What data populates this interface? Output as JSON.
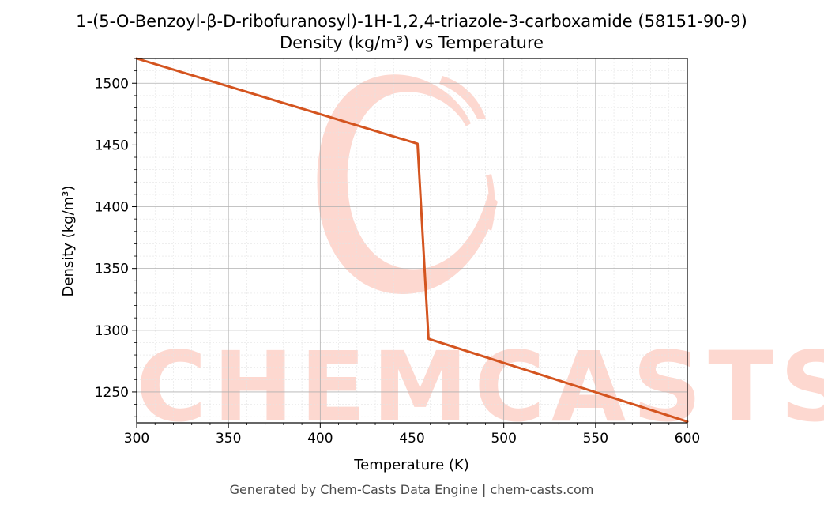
{
  "chart_data": {
    "type": "line",
    "title": "1-(5-O-Benzoyl-β-D-ribofuranosyl)-1H-1,2,4-triazole-3-carboxamide (58151-90-9)",
    "subtitle": "Density (kg/m³) vs Temperature",
    "xlabel": "Temperature (K)",
    "ylabel": "Density (kg/m³)",
    "xlim": [
      300,
      600
    ],
    "ylim": [
      1225,
      1520
    ],
    "xticks": [
      300,
      350,
      400,
      450,
      500,
      550,
      600
    ],
    "yticks": [
      1250,
      1300,
      1350,
      1400,
      1450,
      1500
    ],
    "grid": true,
    "series": [
      {
        "color": "#d4541f",
        "x": [
          300,
          453,
          459,
          600
        ],
        "y": [
          1520,
          1451,
          1293,
          1226
        ]
      }
    ]
  },
  "watermark": {
    "text": "CHEMCASTS",
    "color": "#fdd8d0"
  },
  "footer": {
    "text": "Generated by Chem-Casts Data Engine | chem-casts.com"
  }
}
